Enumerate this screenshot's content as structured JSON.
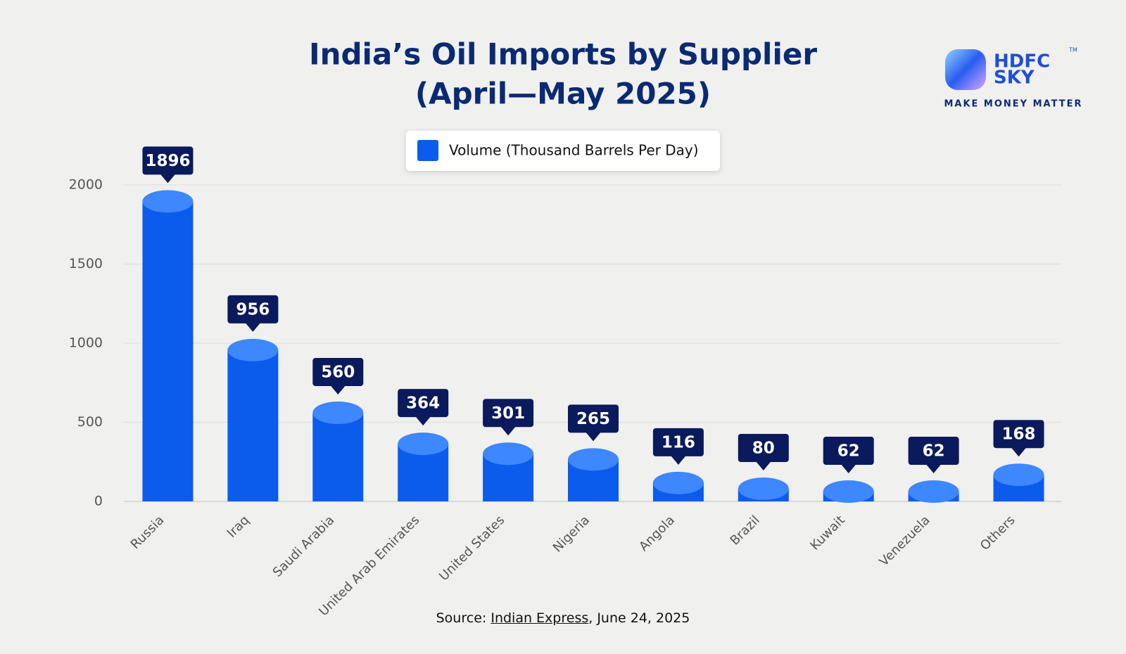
{
  "chart_data": {
    "type": "bar",
    "title": [
      "India’s Oil Imports by Supplier",
      "(April—May 2025)"
    ],
    "categories": [
      "Russia",
      "Iraq",
      "Saudi Arabia",
      "United Arab Emirates",
      "United States",
      "Nigeria",
      "Angola",
      "Brazil",
      "Kuwait",
      "Venezuela",
      "Others"
    ],
    "series": [
      {
        "name": "Volume (Thousand Barrels Per Day)",
        "color": "#0b5ced",
        "values": [
          1896,
          956,
          560,
          364,
          301,
          265,
          116,
          80,
          62,
          62,
          168
        ]
      }
    ],
    "ylim": [
      0,
      2000
    ],
    "yticks": [
      0,
      500,
      1000,
      1500,
      2000
    ],
    "grid": true,
    "source": [
      "Source:",
      "Indian Express",
      ", June 24, 2025"
    ]
  },
  "logo": {
    "top": "HDFC",
    "bottom": "SKY",
    "mark": "TM",
    "tagline": "MAKE MONEY MATTER"
  }
}
